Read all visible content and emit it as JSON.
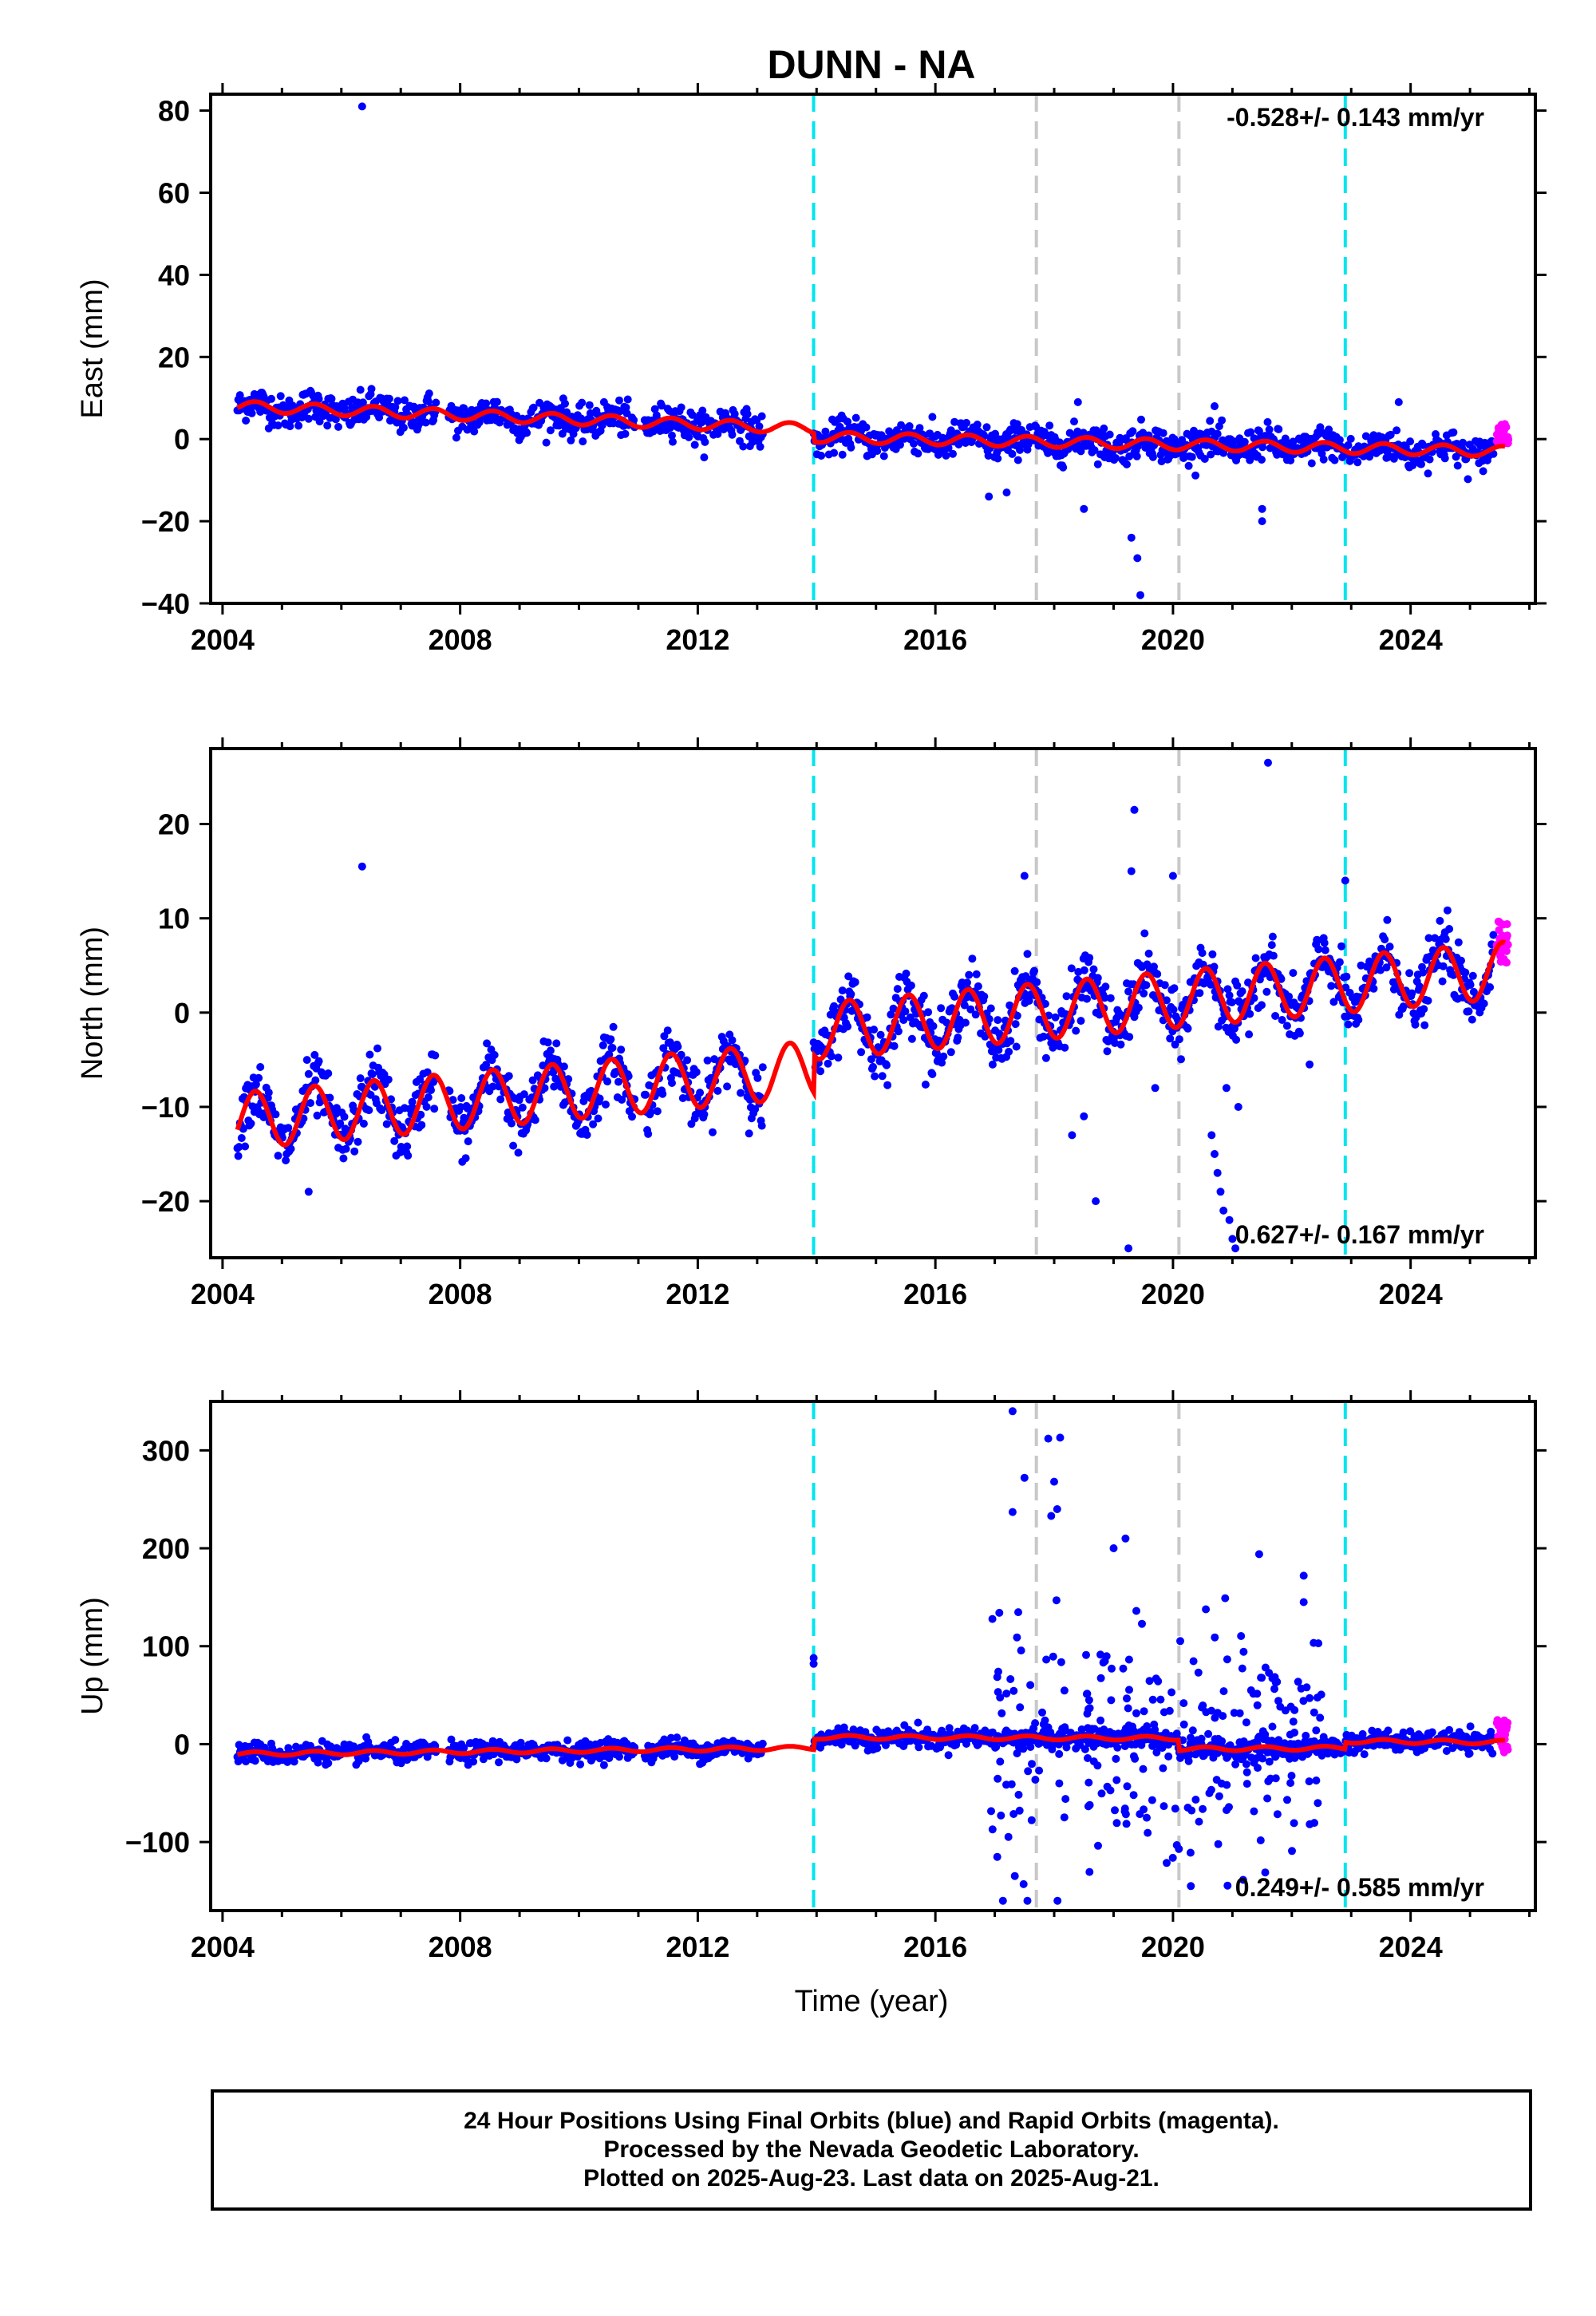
{
  "figure": {
    "title": "DUNN - NA",
    "xlabel": "Time (year)",
    "footer": [
      "24 Hour Positions Using Final Orbits (blue) and Rapid Orbits (magenta).",
      "Processed by the Nevada Geodetic Laboratory.",
      "Plotted on 2025-Aug-23. Last data on 2025-Aug-21."
    ]
  },
  "colors": {
    "final_orbits": "#0000ff",
    "rapid_orbits": "#ff00ff",
    "model": "#ff0000",
    "equipment_change": "#00e5ee",
    "earthquake": "#c8c8c8"
  },
  "chart_data": [
    {
      "type": "scatter",
      "ylabel": "East (mm)",
      "xlim": [
        2003.8,
        2026.1
      ],
      "ylim": [
        -40,
        84
      ],
      "xticks": [
        2004,
        2008,
        2012,
        2016,
        2020,
        2024
      ],
      "yticks": [
        -40,
        -20,
        0,
        20,
        40,
        60,
        80
      ],
      "ytick_labels": [
        "−40",
        "−20",
        "0",
        "20",
        "40",
        "60",
        "80"
      ],
      "rate_label": "-0.528+/- 0.143 mm/yr",
      "rate_position": "top-right",
      "offsets": [
        2013.95,
        2022.9
      ],
      "events": [
        2017.7,
        2020.1
      ],
      "noise_sd": 2.0,
      "model": {
        "segments": [
          {
            "x0": 2004.25,
            "x1": 2013.95,
            "y0": 8.0,
            "y1": 2.5
          },
          {
            "x0": 2013.95,
            "x1": 2025.6,
            "y0": 0.5,
            "y1": -3.0
          }
        ],
        "annual_amplitude": 1.3
      },
      "gaps": [
        [
          2013.1,
          2013.95
        ]
      ],
      "outliers": [
        {
          "x": 2006.35,
          "y": 81
        },
        {
          "x": 2019.45,
          "y": -38
        },
        {
          "x": 2019.4,
          "y": -29
        },
        {
          "x": 2019.3,
          "y": -24
        },
        {
          "x": 2021.5,
          "y": -20
        },
        {
          "x": 2021.5,
          "y": -17
        },
        {
          "x": 2018.5,
          "y": -17
        },
        {
          "x": 2017.2,
          "y": -13
        },
        {
          "x": 2016.9,
          "y": -14
        },
        {
          "x": 2023.8,
          "y": 9
        },
        {
          "x": 2020.7,
          "y": 8
        },
        {
          "x": 2018.4,
          "y": 9
        }
      ],
      "rapid": {
        "x0": 2025.45,
        "x1": 2025.65,
        "y0": -1,
        "y1": 4
      }
    },
    {
      "type": "scatter",
      "ylabel": "North (mm)",
      "xlim": [
        2003.8,
        2026.1
      ],
      "ylim": [
        -26,
        28
      ],
      "xticks": [
        2004,
        2008,
        2012,
        2016,
        2020,
        2024
      ],
      "yticks": [
        -20,
        -10,
        0,
        10,
        20
      ],
      "ytick_labels": [
        "−20",
        "−10",
        "0",
        "10",
        "20"
      ],
      "rate_label": "0.627+/- 0.167 mm/yr",
      "rate_position": "bottom-right",
      "offsets": [
        2013.95,
        2022.9
      ],
      "events": [
        2017.7,
        2020.1
      ],
      "noise_sd": 1.6,
      "model": {
        "segments": [
          {
            "x0": 2004.25,
            "x1": 2013.95,
            "y0": -11.5,
            "y1": -6.0
          },
          {
            "x0": 2013.95,
            "x1": 2025.6,
            "y0": -2.0,
            "y1": 4.5
          }
        ],
        "annual_amplitude": 3.0
      },
      "gaps": [
        [
          2013.1,
          2013.95
        ]
      ],
      "outliers": [
        {
          "x": 2006.35,
          "y": 15.5
        },
        {
          "x": 2005.45,
          "y": -19
        },
        {
          "x": 2019.35,
          "y": 21.5
        },
        {
          "x": 2019.3,
          "y": 15
        },
        {
          "x": 2021.6,
          "y": 26.5
        },
        {
          "x": 2020.0,
          "y": 14.5
        },
        {
          "x": 2019.25,
          "y": -25
        },
        {
          "x": 2018.7,
          "y": -20
        },
        {
          "x": 2018.3,
          "y": -13
        },
        {
          "x": 2018.5,
          "y": -11
        },
        {
          "x": 2020.65,
          "y": -13
        },
        {
          "x": 2020.7,
          "y": -15
        },
        {
          "x": 2020.75,
          "y": -17
        },
        {
          "x": 2020.8,
          "y": -19
        },
        {
          "x": 2020.85,
          "y": -21
        },
        {
          "x": 2020.95,
          "y": -22
        },
        {
          "x": 2021.0,
          "y": -24
        },
        {
          "x": 2021.05,
          "y": -25
        },
        {
          "x": 2020.9,
          "y": -8
        },
        {
          "x": 2021.1,
          "y": -10
        },
        {
          "x": 2017.5,
          "y": 14.5
        },
        {
          "x": 2022.9,
          "y": 14
        },
        {
          "x": 2022.3,
          "y": -5.5
        },
        {
          "x": 2019.7,
          "y": -8
        }
      ],
      "rapid": {
        "x0": 2025.45,
        "x1": 2025.65,
        "y0": 5,
        "y1": 10
      }
    },
    {
      "type": "scatter",
      "ylabel": "Up (mm)",
      "xlim": [
        2003.8,
        2026.1
      ],
      "ylim": [
        -170,
        350
      ],
      "xticks": [
        2004,
        2008,
        2012,
        2016,
        2020,
        2024
      ],
      "yticks": [
        -100,
        0,
        100,
        200,
        300
      ],
      "ytick_labels": [
        "−100",
        "0",
        "100",
        "200",
        "300"
      ],
      "rate_label": "0.249+/- 0.585 mm/yr",
      "rate_position": "bottom-right",
      "offsets": [
        2013.95,
        2022.9
      ],
      "events": [
        2017.7,
        2020.1
      ],
      "noise_sd": 5.0,
      "model": {
        "segments": [
          {
            "x0": 2004.25,
            "x1": 2013.95,
            "y0": -10,
            "y1": -4
          },
          {
            "x0": 2013.95,
            "x1": 2020.1,
            "y0": 7,
            "y1": 6
          },
          {
            "x0": 2020.1,
            "x1": 2022.9,
            "y0": -5,
            "y1": -4
          },
          {
            "x0": 2022.9,
            "x1": 2025.6,
            "y0": 3,
            "y1": 2
          }
        ],
        "annual_amplitude": 2.0
      },
      "gaps": [
        [
          2013.1,
          2013.95
        ]
      ],
      "scatter_zones": [
        {
          "x0": 2016.9,
          "x1": 2018.2,
          "count": 60,
          "ymin": -160,
          "ymax": 340
        },
        {
          "x0": 2018.5,
          "x1": 2022.5,
          "count": 200,
          "ymin": -145,
          "ymax": 215
        }
      ],
      "outliers": [
        {
          "x": 2013.95,
          "y": 88
        },
        {
          "x": 2013.95,
          "y": 82
        },
        {
          "x": 2017.3,
          "y": 340
        },
        {
          "x": 2017.9,
          "y": 312
        },
        {
          "x": 2018.1,
          "y": 313
        },
        {
          "x": 2017.3,
          "y": 237
        },
        {
          "x": 2017.95,
          "y": 233
        },
        {
          "x": 2018.0,
          "y": 268
        },
        {
          "x": 2018.05,
          "y": 240
        },
        {
          "x": 2017.5,
          "y": 272
        },
        {
          "x": 2021.45,
          "y": 194
        },
        {
          "x": 2022.2,
          "y": 172
        },
        {
          "x": 2022.2,
          "y": 145
        },
        {
          "x": 2022.25,
          "y": 58
        },
        {
          "x": 2017.55,
          "y": -160
        },
        {
          "x": 2020.3,
          "y": -145
        },
        {
          "x": 2019.2,
          "y": 210
        },
        {
          "x": 2019.0,
          "y": 200
        }
      ],
      "rapid": {
        "x0": 2025.45,
        "x1": 2025.65,
        "y0": -10,
        "y1": 25
      }
    }
  ]
}
